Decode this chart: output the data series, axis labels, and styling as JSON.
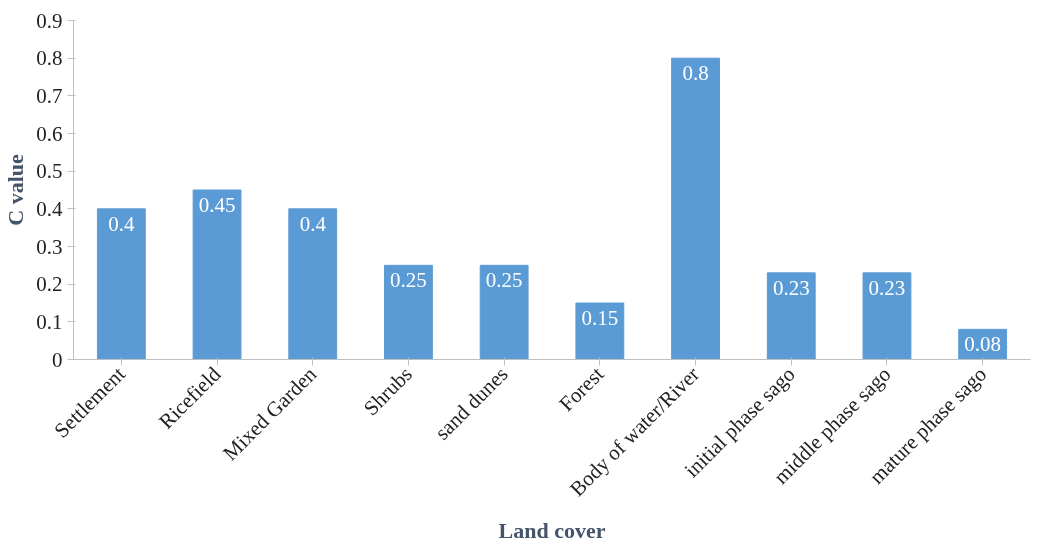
{
  "chart_data": {
    "type": "bar",
    "xlabel": "Land cover",
    "ylabel": "C value",
    "categories": [
      "Settlement",
      "Ricefield",
      "Mixed Garden",
      "Shrubs",
      "sand dunes",
      "Forest",
      "Body of water/River",
      "initial phase sago",
      "middle phase sago",
      "mature phase sago"
    ],
    "values": [
      0.4,
      0.45,
      0.4,
      0.25,
      0.25,
      0.15,
      0.8,
      0.23,
      0.23,
      0.08
    ],
    "color": "#5b9bd5",
    "ylim": [
      0,
      0.9
    ],
    "yticks": [
      0,
      0.1,
      0.2,
      0.3,
      0.4,
      0.5,
      0.6,
      0.7,
      0.8,
      0.9
    ],
    "grid": false,
    "data_labels": true
  }
}
